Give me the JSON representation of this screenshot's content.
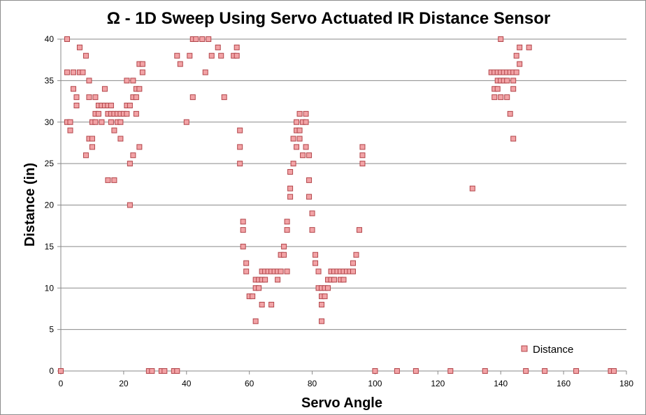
{
  "chart_data": {
    "type": "scatter",
    "title": "Ω - 1D Sweep Using Servo Actuated IR Distance Sensor",
    "xlabel": "Servo Angle",
    "ylabel": "Distance (in)",
    "xlim": [
      0,
      180
    ],
    "ylim": [
      0,
      40
    ],
    "xticks": [
      "0",
      "20",
      "40",
      "60",
      "80",
      "100",
      "120",
      "140",
      "160",
      "180"
    ],
    "yticks": [
      "0",
      "5",
      "10",
      "15",
      "20",
      "25",
      "30",
      "35",
      "40"
    ],
    "grid": "horizontal",
    "legend": "bottom-right",
    "colors": {
      "marker_fill": "#f2a3a6",
      "marker_stroke": "#b2454a",
      "grid": "#8a8a8a"
    },
    "series": [
      {
        "name": "Distance",
        "points": [
          [
            0,
            0
          ],
          [
            2,
            40
          ],
          [
            2,
            36
          ],
          [
            2,
            30
          ],
          [
            3,
            30
          ],
          [
            3,
            29
          ],
          [
            4,
            36
          ],
          [
            4,
            34
          ],
          [
            5,
            33
          ],
          [
            5,
            32
          ],
          [
            6,
            39
          ],
          [
            6,
            36
          ],
          [
            7,
            36
          ],
          [
            8,
            38
          ],
          [
            8,
            26
          ],
          [
            9,
            35
          ],
          [
            9,
            33
          ],
          [
            9,
            28
          ],
          [
            10,
            30
          ],
          [
            10,
            28
          ],
          [
            10,
            27
          ],
          [
            11,
            33
          ],
          [
            11,
            31
          ],
          [
            11,
            30
          ],
          [
            12,
            32
          ],
          [
            12,
            31
          ],
          [
            13,
            32
          ],
          [
            13,
            30
          ],
          [
            14,
            34
          ],
          [
            14,
            32
          ],
          [
            15,
            32
          ],
          [
            15,
            31
          ],
          [
            15,
            23
          ],
          [
            16,
            32
          ],
          [
            16,
            31
          ],
          [
            16,
            30
          ],
          [
            17,
            31
          ],
          [
            17,
            29
          ],
          [
            17,
            23
          ],
          [
            18,
            31
          ],
          [
            18,
            30
          ],
          [
            19,
            31
          ],
          [
            19,
            30
          ],
          [
            19,
            28
          ],
          [
            20,
            31
          ],
          [
            21,
            35
          ],
          [
            21,
            32
          ],
          [
            21,
            31
          ],
          [
            22,
            32
          ],
          [
            22,
            25
          ],
          [
            22,
            20
          ],
          [
            23,
            35
          ],
          [
            23,
            33
          ],
          [
            23,
            26
          ],
          [
            24,
            34
          ],
          [
            24,
            33
          ],
          [
            24,
            31
          ],
          [
            25,
            37
          ],
          [
            25,
            34
          ],
          [
            25,
            27
          ],
          [
            26,
            37
          ],
          [
            26,
            36
          ],
          [
            28,
            0
          ],
          [
            29,
            0
          ],
          [
            32,
            0
          ],
          [
            33,
            0
          ],
          [
            36,
            0
          ],
          [
            37,
            38
          ],
          [
            37,
            0
          ],
          [
            38,
            37
          ],
          [
            40,
            30
          ],
          [
            41,
            38
          ],
          [
            42,
            40
          ],
          [
            42,
            33
          ],
          [
            43,
            40
          ],
          [
            45,
            40
          ],
          [
            46,
            36
          ],
          [
            47,
            40
          ],
          [
            48,
            38
          ],
          [
            50,
            39
          ],
          [
            51,
            38
          ],
          [
            52,
            33
          ],
          [
            55,
            38
          ],
          [
            56,
            39
          ],
          [
            56,
            38
          ],
          [
            57,
            29
          ],
          [
            57,
            27
          ],
          [
            57,
            25
          ],
          [
            58,
            18
          ],
          [
            58,
            17
          ],
          [
            58,
            15
          ],
          [
            59,
            13
          ],
          [
            59,
            12
          ],
          [
            60,
            9
          ],
          [
            61,
            9
          ],
          [
            62,
            11
          ],
          [
            62,
            10
          ],
          [
            62,
            6
          ],
          [
            63,
            11
          ],
          [
            63,
            10
          ],
          [
            64,
            12
          ],
          [
            64,
            11
          ],
          [
            64,
            8
          ],
          [
            65,
            12
          ],
          [
            65,
            11
          ],
          [
            66,
            12
          ],
          [
            67,
            12
          ],
          [
            67,
            8
          ],
          [
            68,
            12
          ],
          [
            69,
            12
          ],
          [
            69,
            11
          ],
          [
            70,
            14
          ],
          [
            70,
            12
          ],
          [
            71,
            15
          ],
          [
            71,
            14
          ],
          [
            72,
            18
          ],
          [
            72,
            17
          ],
          [
            72,
            12
          ],
          [
            73,
            24
          ],
          [
            73,
            22
          ],
          [
            73,
            21
          ],
          [
            74,
            28
          ],
          [
            74,
            25
          ],
          [
            75,
            30
          ],
          [
            75,
            29
          ],
          [
            75,
            27
          ],
          [
            76,
            31
          ],
          [
            76,
            29
          ],
          [
            76,
            28
          ],
          [
            77,
            30
          ],
          [
            77,
            26
          ],
          [
            78,
            31
          ],
          [
            78,
            30
          ],
          [
            78,
            27
          ],
          [
            79,
            26
          ],
          [
            79,
            23
          ],
          [
            79,
            21
          ],
          [
            80,
            19
          ],
          [
            80,
            17
          ],
          [
            81,
            14
          ],
          [
            81,
            13
          ],
          [
            82,
            12
          ],
          [
            82,
            10
          ],
          [
            83,
            10
          ],
          [
            83,
            9
          ],
          [
            83,
            8
          ],
          [
            83,
            6
          ],
          [
            84,
            10
          ],
          [
            84,
            9
          ],
          [
            85,
            11
          ],
          [
            85,
            10
          ],
          [
            86,
            12
          ],
          [
            86,
            11
          ],
          [
            87,
            12
          ],
          [
            87,
            11
          ],
          [
            88,
            12
          ],
          [
            89,
            12
          ],
          [
            89,
            11
          ],
          [
            90,
            12
          ],
          [
            90,
            11
          ],
          [
            91,
            12
          ],
          [
            92,
            12
          ],
          [
            93,
            13
          ],
          [
            93,
            12
          ],
          [
            94,
            14
          ],
          [
            95,
            17
          ],
          [
            96,
            27
          ],
          [
            96,
            26
          ],
          [
            96,
            25
          ],
          [
            100,
            0
          ],
          [
            107,
            0
          ],
          [
            113,
            0
          ],
          [
            124,
            0
          ],
          [
            131,
            22
          ],
          [
            135,
            0
          ],
          [
            137,
            36
          ],
          [
            138,
            36
          ],
          [
            138,
            34
          ],
          [
            138,
            33
          ],
          [
            139,
            36
          ],
          [
            139,
            35
          ],
          [
            139,
            34
          ],
          [
            140,
            40
          ],
          [
            140,
            36
          ],
          [
            140,
            35
          ],
          [
            140,
            33
          ],
          [
            141,
            36
          ],
          [
            141,
            35
          ],
          [
            142,
            36
          ],
          [
            142,
            35
          ],
          [
            142,
            33
          ],
          [
            143,
            36
          ],
          [
            143,
            31
          ],
          [
            144,
            36
          ],
          [
            144,
            35
          ],
          [
            144,
            34
          ],
          [
            144,
            28
          ],
          [
            145,
            38
          ],
          [
            145,
            36
          ],
          [
            146,
            39
          ],
          [
            146,
            37
          ],
          [
            148,
            0
          ],
          [
            149,
            39
          ],
          [
            154,
            0
          ],
          [
            164,
            0
          ],
          [
            175,
            0
          ],
          [
            176,
            0
          ]
        ]
      }
    ]
  }
}
